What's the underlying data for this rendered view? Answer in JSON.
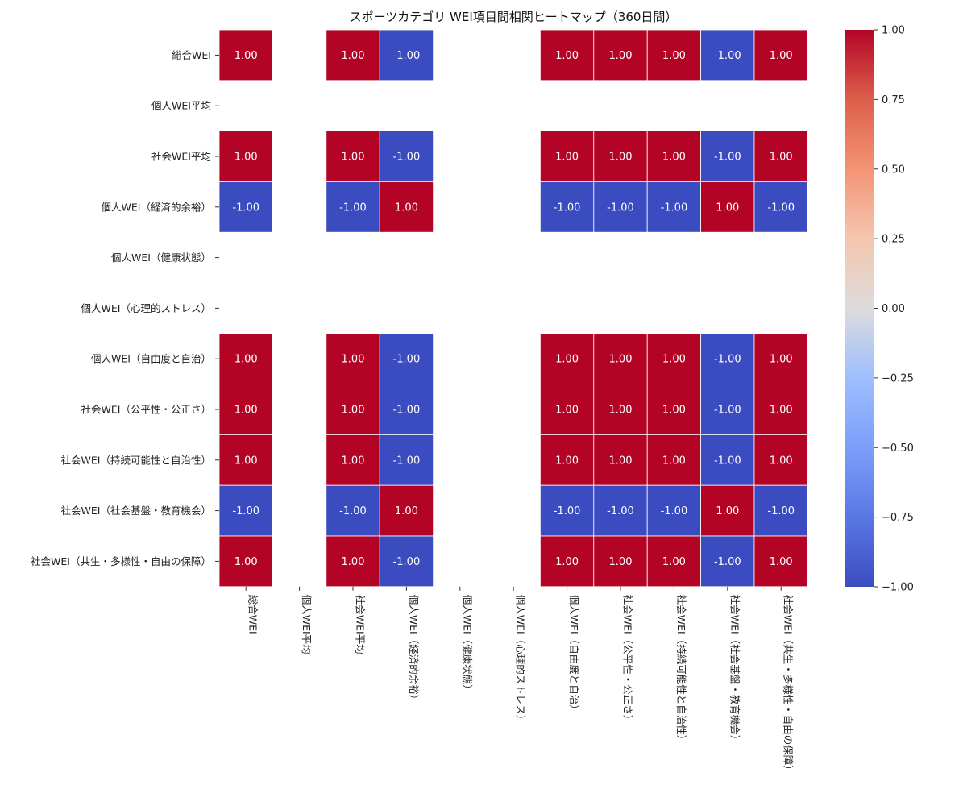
{
  "chart_data": {
    "type": "heatmap",
    "title": "スポーツカテゴリ WEI項目間相関ヒートマップ（360日間）",
    "rows": [
      "総合WEI",
      "個人WEI平均",
      "社会WEI平均",
      "個人WEI（経済的余裕）",
      "個人WEI（健康状態）",
      "個人WEI（心理的ストレス）",
      "個人WEI（自由度と自治）",
      "社会WEI（公平性・公正さ）",
      "社会WEI（持続可能性と自治性）",
      "社会WEI（社会基盤・教育機会）",
      "社会WEI（共生・多様性・自由の保障）"
    ],
    "columns": [
      "総合WEI",
      "個人WEI平均",
      "社会WEI平均",
      "個人WEI（経済的余裕）",
      "個人WEI（健康状態）",
      "個人WEI（心理的ストレス）",
      "個人WEI（自由度と自治）",
      "社会WEI（公平性・公正さ）",
      "社会WEI（持続可能性と自治性）",
      "社会WEI（社会基盤・教育機会）",
      "社会WEI（共生・多様性・自由の保障）"
    ],
    "values": [
      [
        1,
        null,
        1,
        -1,
        null,
        null,
        1,
        1,
        1,
        -1,
        1
      ],
      [
        null,
        null,
        null,
        null,
        null,
        null,
        null,
        null,
        null,
        null,
        null
      ],
      [
        1,
        null,
        1,
        -1,
        null,
        null,
        1,
        1,
        1,
        -1,
        1
      ],
      [
        -1,
        null,
        -1,
        1,
        null,
        null,
        -1,
        -1,
        -1,
        1,
        -1
      ],
      [
        null,
        null,
        null,
        null,
        null,
        null,
        null,
        null,
        null,
        null,
        null
      ],
      [
        null,
        null,
        null,
        null,
        null,
        null,
        null,
        null,
        null,
        null,
        null
      ],
      [
        1,
        null,
        1,
        -1,
        null,
        null,
        1,
        1,
        1,
        -1,
        1
      ],
      [
        1,
        null,
        1,
        -1,
        null,
        null,
        1,
        1,
        1,
        -1,
        1
      ],
      [
        1,
        null,
        1,
        -1,
        null,
        null,
        1,
        1,
        1,
        -1,
        1
      ],
      [
        -1,
        null,
        -1,
        1,
        null,
        null,
        -1,
        -1,
        -1,
        1,
        -1
      ],
      [
        1,
        null,
        1,
        -1,
        null,
        null,
        1,
        1,
        1,
        -1,
        1
      ]
    ],
    "annotation_format": "0.00",
    "colormap": "coolwarm",
    "vmin": -1.0,
    "vmax": 1.0,
    "colors": {
      "positive": "#b40426",
      "negative": "#3b4cc0",
      "neutral": "#dddcdc",
      "cell_border": "#ffffff",
      "annotation_text": "#ffffff"
    },
    "colorbar": {
      "ticks": [
        1.0,
        0.75,
        0.5,
        0.25,
        0.0,
        -0.25,
        -0.5,
        -0.75,
        -1.0
      ],
      "tick_labels": [
        "1.00",
        "0.75",
        "0.50",
        "0.25",
        "0.00",
        "−0.25",
        "−0.50",
        "−0.75",
        "−1.00"
      ]
    }
  }
}
